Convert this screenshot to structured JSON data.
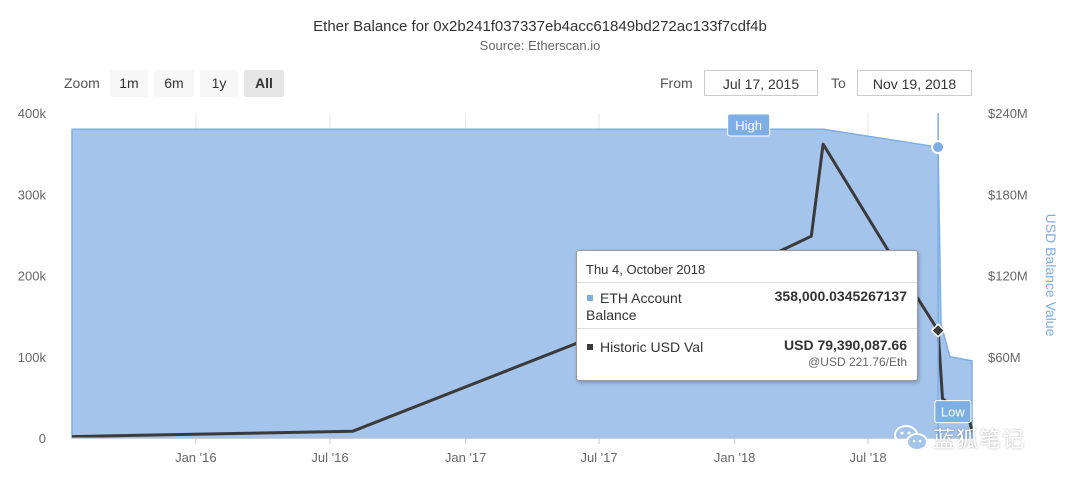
{
  "chart_data": {
    "type": "area",
    "title": "Ether Balance for 0x2b241f037337eb4acc61849bd272ac133f7cdf4b",
    "subtitle": "Source: Etherscan.io",
    "x_tick_labels": [
      "Jan '16",
      "Jul '16",
      "Jan '17",
      "Jul '17",
      "Jan '18",
      "Jul '18"
    ],
    "y_left": {
      "ticks": [
        "0",
        "100k",
        "200k",
        "300k",
        "400k"
      ],
      "range": [
        0,
        400000
      ]
    },
    "y_right": {
      "label": "USD Balance Value",
      "ticks": [
        "$60M",
        "$120M",
        "$180M",
        "$240M"
      ],
      "range": [
        0,
        240000000
      ]
    },
    "grid_x": true,
    "series": [
      {
        "name": "ETH Account Balance",
        "type": "area",
        "color": "#a5c4ec",
        "points": [
          [
            "2015-07-17",
            380000
          ],
          [
            "2018-05-01",
            380000
          ],
          [
            "2018-10-04",
            358000
          ],
          [
            "2018-10-08",
            140000
          ],
          [
            "2018-10-20",
            100000
          ],
          [
            "2018-11-19",
            95000
          ],
          [
            "2018-11-19",
            0
          ]
        ]
      },
      {
        "name": "Historic USD Val",
        "type": "line",
        "color": "#3a3a3a",
        "points": [
          [
            "2015-07-17",
            1000000
          ],
          [
            "2016-08-01",
            5000000
          ],
          [
            "2017-08-15",
            86000000
          ],
          [
            "2018-04-15",
            149000000
          ],
          [
            "2018-05-01",
            217000000
          ],
          [
            "2018-08-26",
            113000000
          ],
          [
            "2018-10-04",
            79390087.66
          ],
          [
            "2018-10-10",
            29000000
          ],
          [
            "2018-11-15",
            14000000
          ],
          [
            "2018-11-19",
            5000000
          ]
        ]
      }
    ],
    "annotations": {
      "high": "High",
      "low": "Low"
    },
    "tooltip": {
      "date": "Thu 4, October 2018",
      "rows": [
        {
          "name_line1": "ETH Account",
          "name_line2": "Balance",
          "value": "358,000.0345267137",
          "swatch": "#7eaee6"
        },
        {
          "name": "Historic USD Val",
          "value": "USD 79,390,087.66",
          "sub": "@USD 221.76/Eth",
          "swatch": "#3a3a3a"
        }
      ]
    }
  },
  "zoom": {
    "label": "Zoom",
    "buttons": [
      "1m",
      "6m",
      "1y",
      "All"
    ],
    "active": "All"
  },
  "range": {
    "from_label": "From",
    "from_value": "Jul 17, 2015",
    "to_label": "To",
    "to_value": "Nov 19, 2018"
  },
  "watermark": {
    "text": "蓝狐笔记"
  }
}
